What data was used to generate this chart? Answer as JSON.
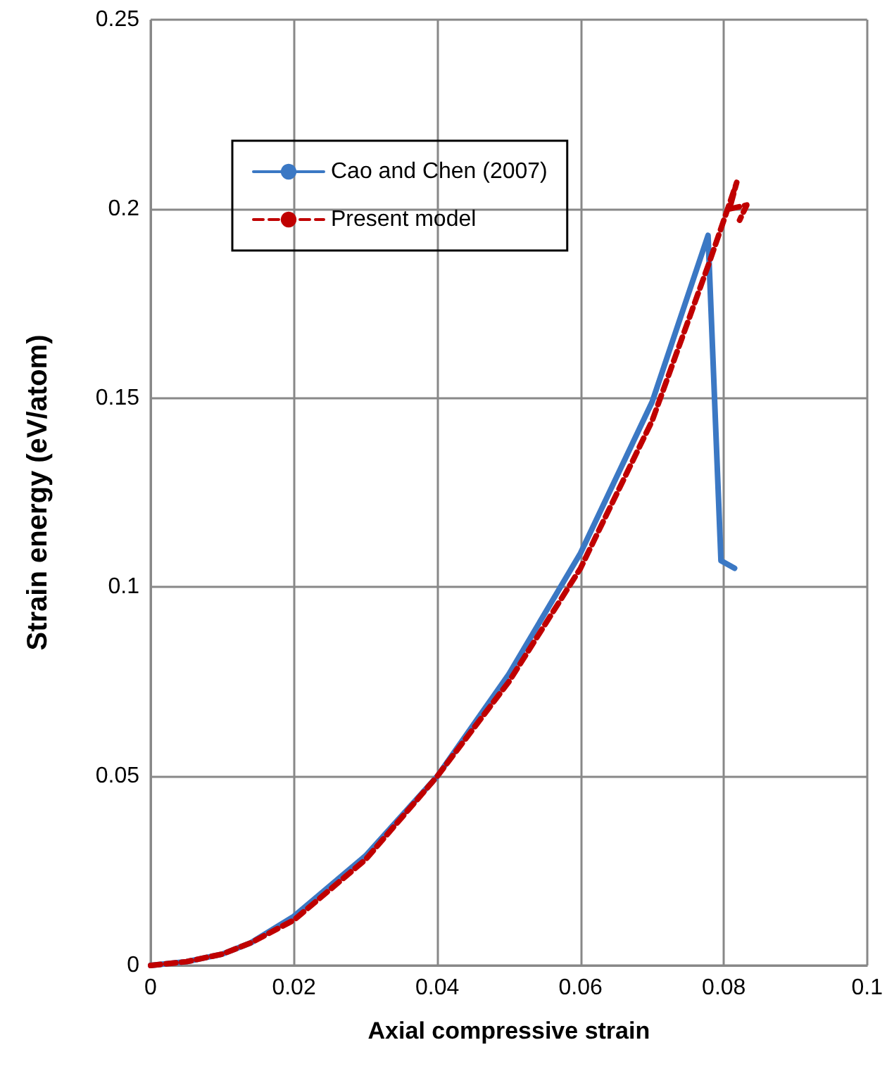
{
  "chart_data": {
    "type": "line",
    "xlabel": "Axial compressive strain",
    "ylabel": "Strain energy (eV/atom)",
    "xlim": [
      0,
      0.1
    ],
    "xticks": [
      0,
      0.02,
      0.04,
      0.06,
      0.08,
      0.1
    ],
    "ylim": [
      0,
      0.25
    ],
    "yticks": [
      0,
      0.05,
      0.1,
      0.15,
      0.2,
      0.25
    ],
    "grid": true,
    "legend": "top left",
    "marker": "none",
    "series": [
      {
        "name": "Cao and Chen (2007)",
        "color": "#3b78c4",
        "line_style": "solid",
        "x": [
          0,
          0.005,
          0.01,
          0.014,
          0.02,
          0.03,
          0.04,
          0.05,
          0.06,
          0.07,
          0.0778,
          0.0796,
          0.0815
        ],
        "values": [
          0,
          0.001,
          0.003,
          0.006,
          0.013,
          0.029,
          0.05,
          0.077,
          0.109,
          0.149,
          0.193,
          0.107,
          0.105
        ]
      },
      {
        "name": "Present model",
        "color": "#c00000",
        "line_style": "dashed",
        "x": [
          0,
          0.005,
          0.01,
          0.014,
          0.02,
          0.03,
          0.04,
          0.05,
          0.06,
          0.07,
          0.078,
          0.08,
          0.0818,
          0.0808,
          0.0832,
          0.0822
        ],
        "values": [
          0,
          0.001,
          0.003,
          0.006,
          0.012,
          0.028,
          0.05,
          0.075,
          0.105,
          0.144,
          0.186,
          0.197,
          0.207,
          0.2,
          0.201,
          0.197
        ]
      }
    ]
  }
}
